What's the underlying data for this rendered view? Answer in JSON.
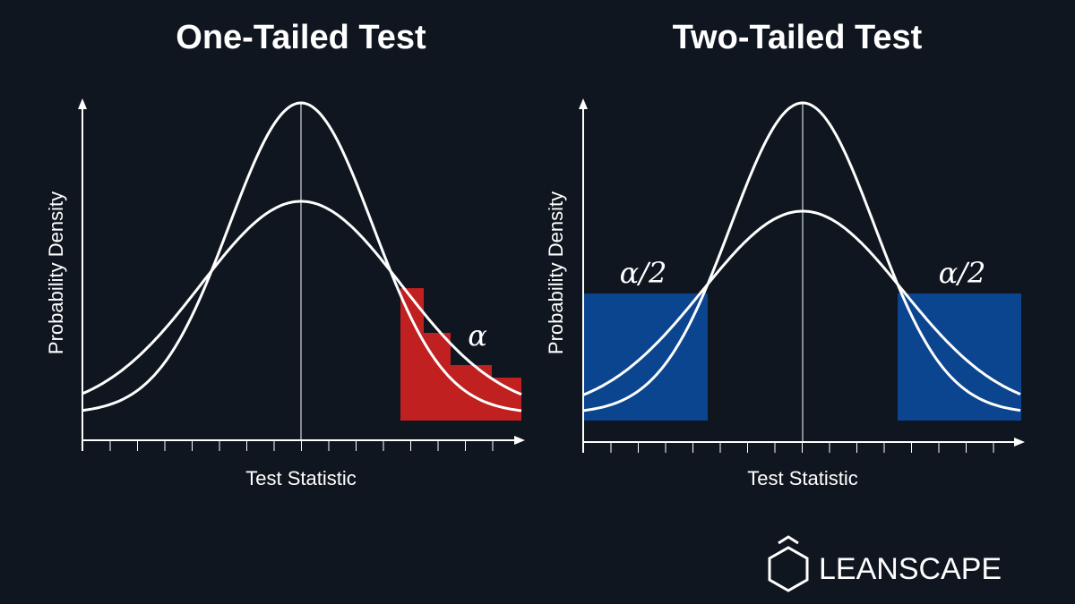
{
  "panels": [
    {
      "title": "One-Tailed Test",
      "y_label": "Probability Density",
      "x_label": "Test Statistic",
      "region_label": "α"
    },
    {
      "title": "Two-Tailed Test",
      "y_label": "Probability Density",
      "x_label": "Test Statistic",
      "region_labels": [
        "α/2",
        "α/2"
      ]
    }
  ],
  "logo": {
    "text": "LEANSCAPE"
  }
}
